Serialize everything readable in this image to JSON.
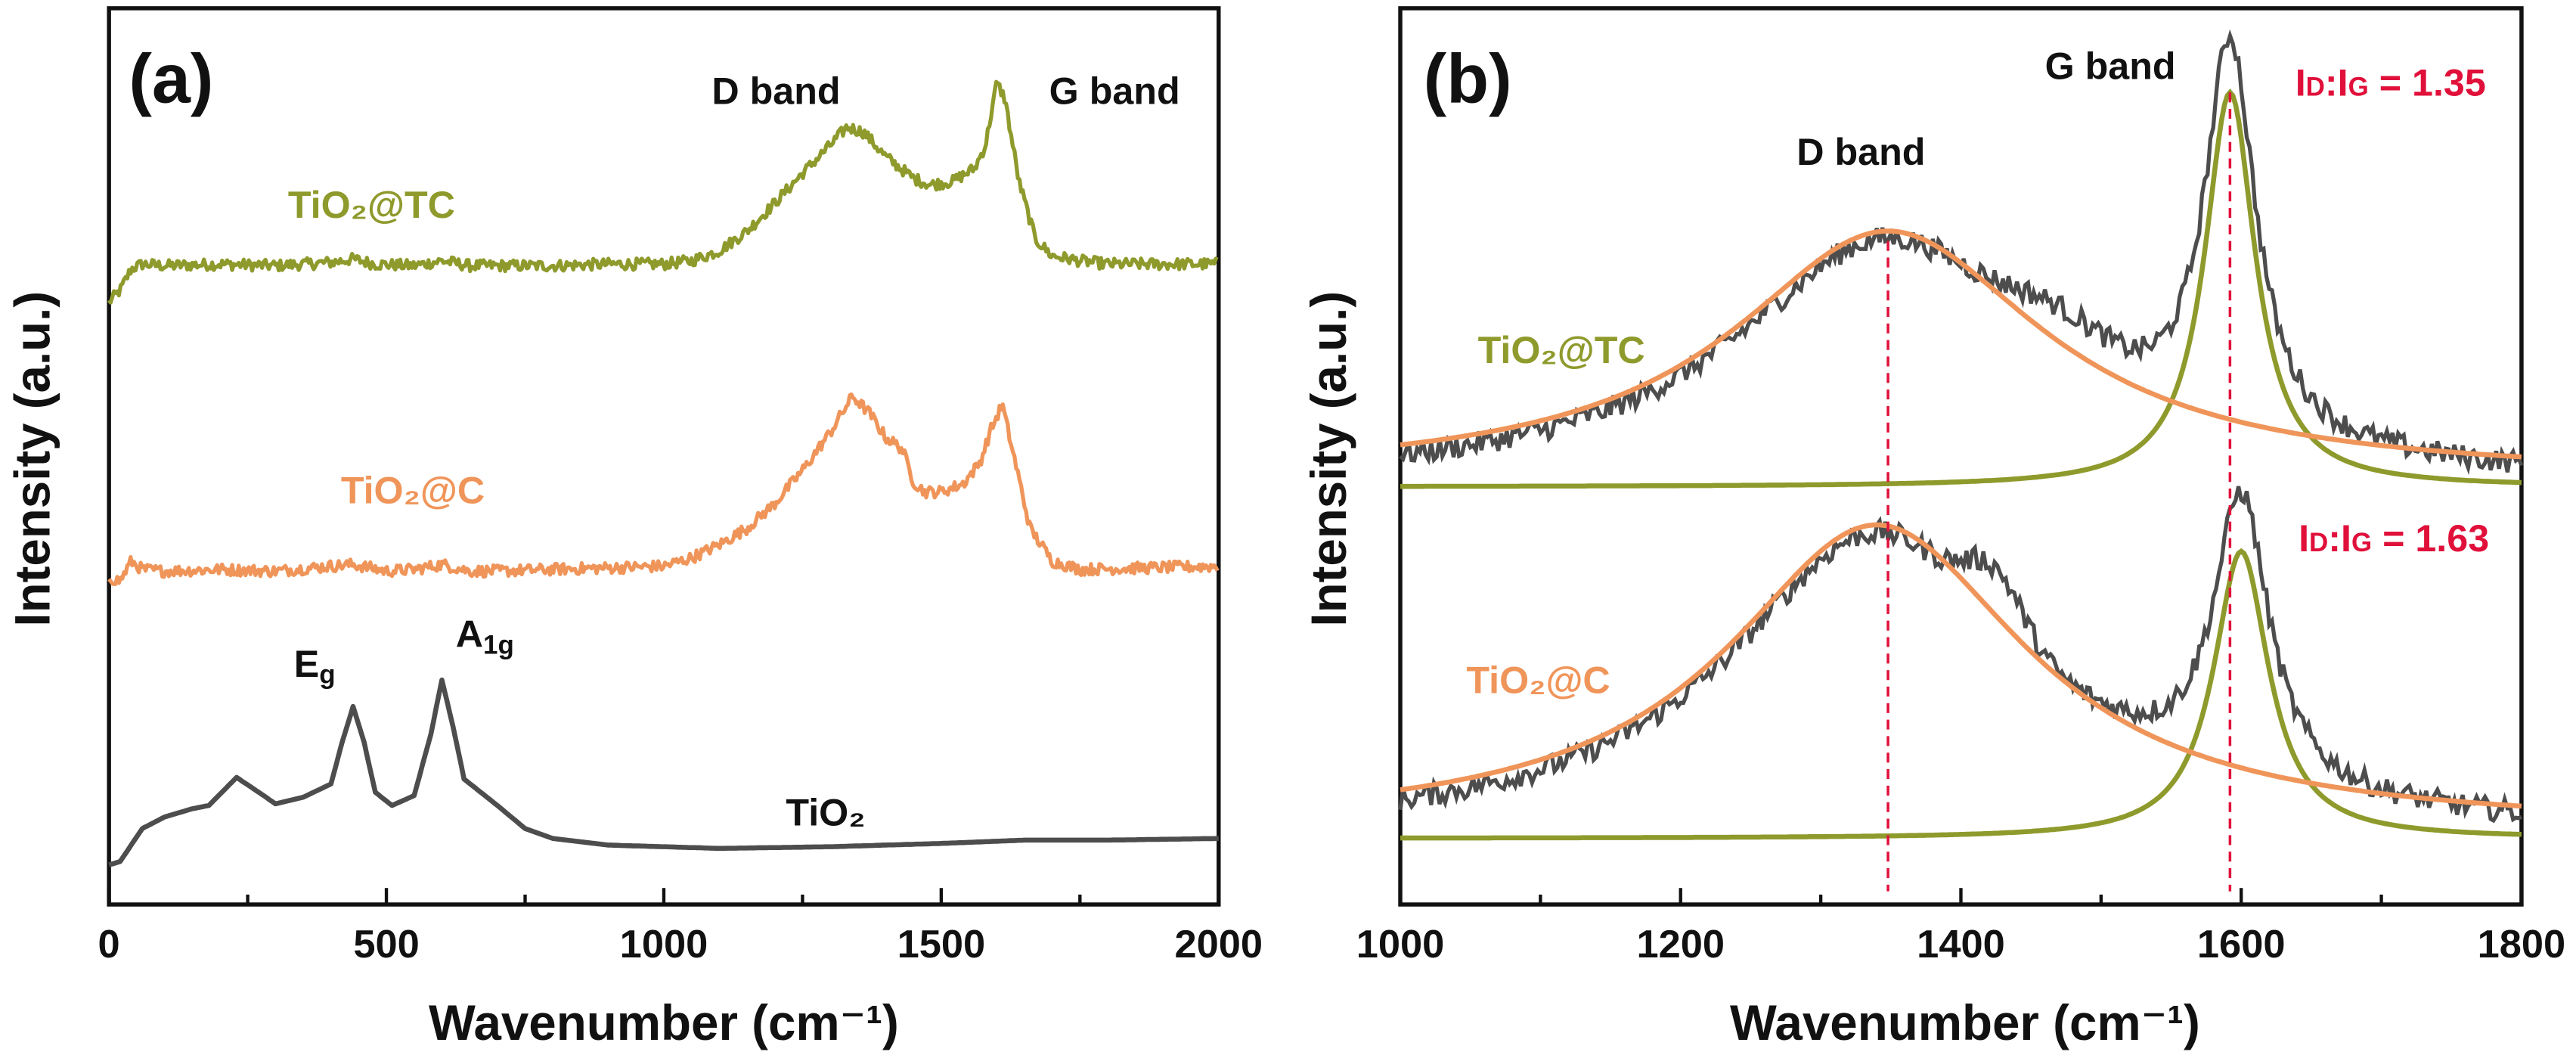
{
  "chart_data": [
    {
      "type": "line",
      "panel_label": "(a)",
      "xlabel": "Wavenumber (cm⁻¹)",
      "ylabel": "Intensity (a.u.)",
      "xlim": [
        0,
        2000
      ],
      "ylim": [
        0,
        543
      ],
      "xticks": [
        "0",
        "500",
        "1000",
        "1500",
        "2000"
      ],
      "annotations": {
        "d_band": "D band",
        "g_band": "G band",
        "eg_main": "E",
        "eg_sub": "g",
        "a1g_main": "A",
        "a1g_sub": "1g"
      },
      "series": [
        {
          "name": "TiO₂@TC",
          "color": "#8f9a2c",
          "noisy": true,
          "x": [
            0,
            20,
            40,
            60,
            100,
            200,
            300,
            400,
            440,
            480,
            550,
            600,
            650,
            700,
            800,
            900,
            1000,
            1050,
            1100,
            1150,
            1200,
            1250,
            1300,
            1330,
            1360,
            1400,
            1450,
            1480,
            1520,
            1560,
            1580,
            1600,
            1615,
            1640,
            1670,
            1700,
            1750,
            1800,
            2000
          ],
          "y": [
            365,
            372,
            385,
            388,
            387,
            388,
            387,
            389,
            391,
            388,
            387,
            390,
            387,
            387,
            387,
            388,
            388,
            390,
            396,
            408,
            425,
            443,
            460,
            471,
            468,
            453,
            440,
            436,
            438,
            446,
            460,
            498,
            488,
            438,
            403,
            393,
            390,
            388,
            388
          ]
        },
        {
          "name": "TiO₂@C",
          "color": "#f0955a",
          "noisy": true,
          "x": [
            0,
            20,
            40,
            60,
            100,
            200,
            300,
            400,
            440,
            500,
            550,
            600,
            650,
            700,
            800,
            900,
            1000,
            1050,
            1100,
            1150,
            1200,
            1250,
            1300,
            1340,
            1370,
            1400,
            1430,
            1450,
            1470,
            1500,
            1540,
            1570,
            1590,
            1610,
            1630,
            1660,
            1700,
            1750,
            2000
          ],
          "y": [
            198,
            196,
            208,
            203,
            202,
            203,
            202,
            205,
            206,
            202,
            203,
            206,
            202,
            202,
            203,
            204,
            205,
            210,
            218,
            228,
            243,
            263,
            286,
            308,
            298,
            283,
            276,
            256,
            250,
            250,
            255,
            268,
            288,
            303,
            273,
            228,
            208,
            203,
            205
          ]
        },
        {
          "name": "TiO₂",
          "color": "#4d4d4d",
          "noisy": false,
          "x": [
            0,
            20,
            40,
            60,
            100,
            150,
            180,
            230,
            270,
            300,
            350,
            400,
            420,
            440,
            460,
            480,
            510,
            550,
            580,
            600,
            620,
            640,
            670,
            700,
            750,
            800,
            900,
            1100,
            1300,
            1500,
            1650,
            1800,
            2000
          ],
          "y": [
            24,
            26,
            36,
            46,
            53,
            58,
            60,
            77,
            68,
            61,
            65,
            73,
            98,
            120,
            98,
            68,
            60,
            66,
            103,
            136,
            108,
            76,
            68,
            60,
            46,
            40,
            36,
            34,
            35,
            37,
            39,
            39,
            40
          ]
        }
      ]
    },
    {
      "type": "line",
      "panel_label": "(b)",
      "xlabel": "Wavenumber (cm⁻¹)",
      "ylabel": "Intensity (a.u.)",
      "xlim": [
        1000,
        1800
      ],
      "ylim": [
        0,
        543
      ],
      "xticks": [
        "1000",
        "1200",
        "1400",
        "1600",
        "1800"
      ],
      "annotations": {
        "d_band": "D band",
        "g_band": "G band"
      },
      "data_color": "#4d4d4d",
      "fit_colors": {
        "D": "#f0955a",
        "G": "#8f9a2c"
      },
      "marker_color": "#e0103a",
      "samples": [
        {
          "name": "TiO₂@TC",
          "name_color": "#8f9a2c",
          "baseline": 253,
          "D_fit": {
            "center": 1348,
            "amplitude": 149,
            "hwhm": 135
          },
          "G_fit": {
            "center": 1592,
            "amplitude": 239,
            "hwhm": 22
          },
          "extra_bump": {
            "center": 1470,
            "amplitude": 20,
            "width": 50
          },
          "ratio": {
            "i1": "I",
            "s1": "D",
            "i2": ":I",
            "s2": "G",
            "value": " = 1.35"
          }
        },
        {
          "name": "TiO₂@C",
          "name_color": "#f0955a",
          "baseline": 40,
          "D_fit": {
            "center": 1340,
            "amplitude": 184,
            "hwhm": 130
          },
          "G_fit": {
            "center": 1600,
            "amplitude": 174,
            "hwhm": 24
          },
          "extra_bump": {
            "center": 1425,
            "amplitude": 32,
            "width": 28
          },
          "ratio": {
            "i1": "I",
            "s1": "D",
            "i2": ":I",
            "s2": "G",
            "value": " = 1.63"
          }
        }
      ]
    }
  ]
}
